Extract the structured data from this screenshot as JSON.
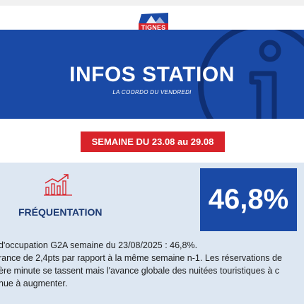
{
  "brand": {
    "logo_text": "TIGNES",
    "logo_color": "#d8232a"
  },
  "header": {
    "title": "INFOS STATION",
    "subtitle": "LA COORDO DU VENDREDI",
    "background_color": "#1a4aa6",
    "deco_icon": "info-icon"
  },
  "week_badge": {
    "label": "SEMAINE DU 23.08 au 29.08",
    "color": "#d8232a"
  },
  "stats": {
    "icon": "chart-growth-icon",
    "label": "FRÉQUENTATION",
    "value": "46,8%"
  },
  "body": {
    "lines": [
      "d'occupation G2A semaine du 23/08/2025 : 46,8%.",
      "rance de 2,4pts par rapport à la même semaine n-1. Les réservations de",
      "ère minute se tassent mais l'avance globale des nuitées touristiques à c",
      "nue à augmenter."
    ]
  }
}
